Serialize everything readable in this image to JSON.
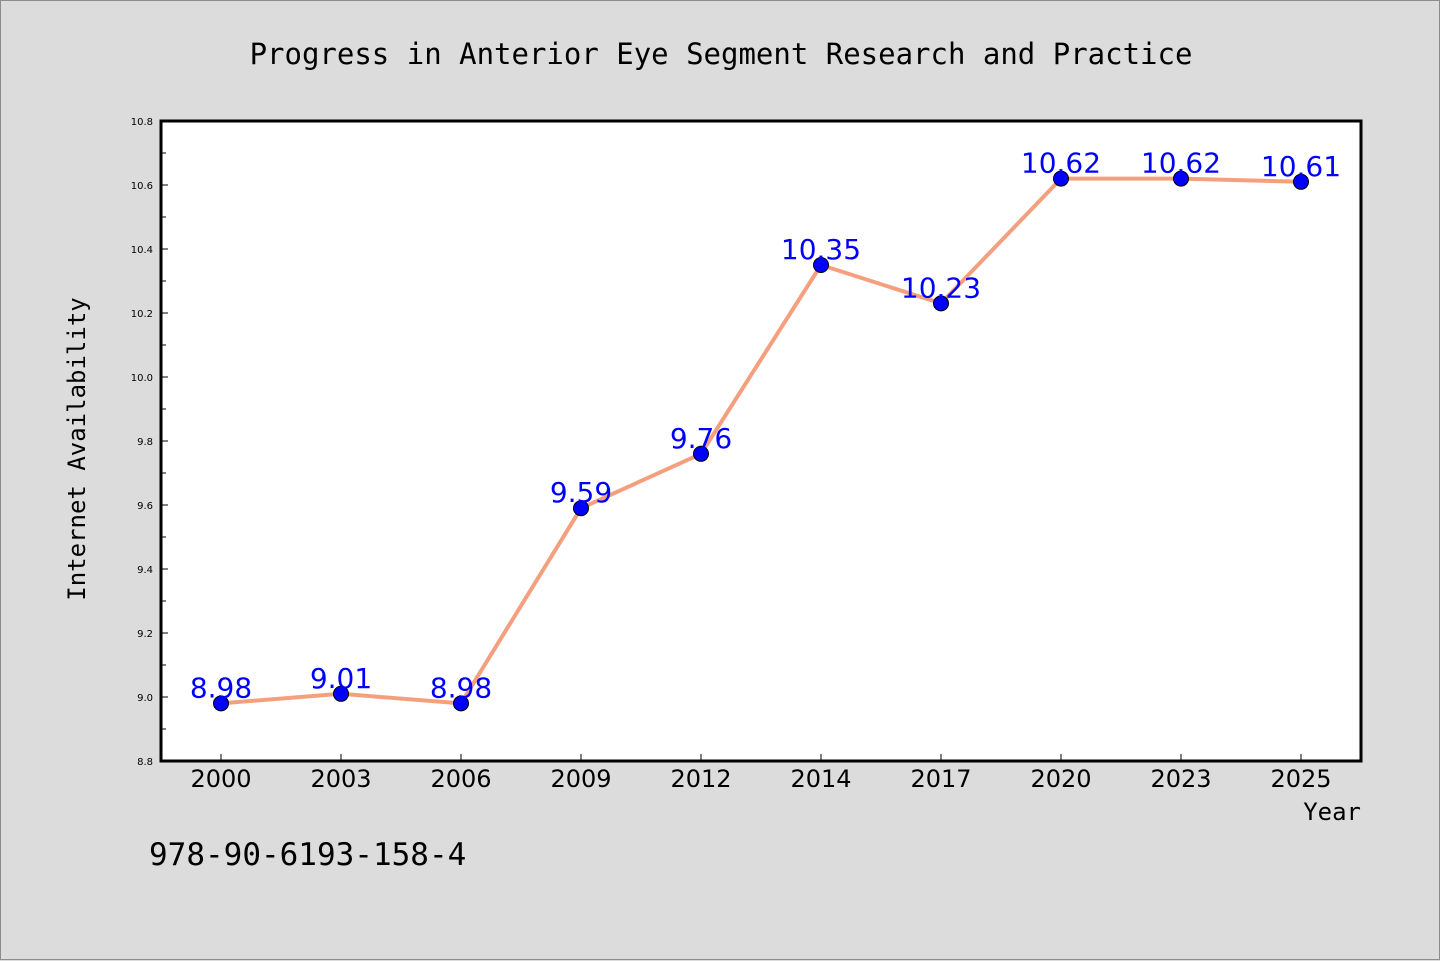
{
  "chart_data": {
    "type": "line",
    "title": "Progress in Anterior Eye Segment Research and Practice",
    "xlabel": "Year",
    "ylabel": "Internet Availability",
    "categories": [
      "2000",
      "2003",
      "2006",
      "2009",
      "2012",
      "2014",
      "2017",
      "2020",
      "2023",
      "2025"
    ],
    "series": [
      {
        "values": [
          8.98,
          9.01,
          8.98,
          9.59,
          9.76,
          10.35,
          10.23,
          10.62,
          10.62,
          10.61
        ],
        "line_color": "#f4a07f",
        "marker_color": "#0000ff",
        "label_color": "#0000ff"
      }
    ],
    "ylim": [
      8.8,
      10.8
    ],
    "yticks": [
      "8.8",
      "9.0",
      "9.2",
      "9.4",
      "9.6",
      "9.8",
      "10.0",
      "10.2",
      "10.4",
      "10.6",
      "10.8"
    ],
    "grid": false,
    "data_labels": [
      "8.98",
      "9.01",
      "8.98",
      "9.59",
      "9.76",
      "10.35",
      "10.23",
      "10.62",
      "10.62",
      "10.61"
    ]
  },
  "footnote": "978-90-6193-158-4"
}
